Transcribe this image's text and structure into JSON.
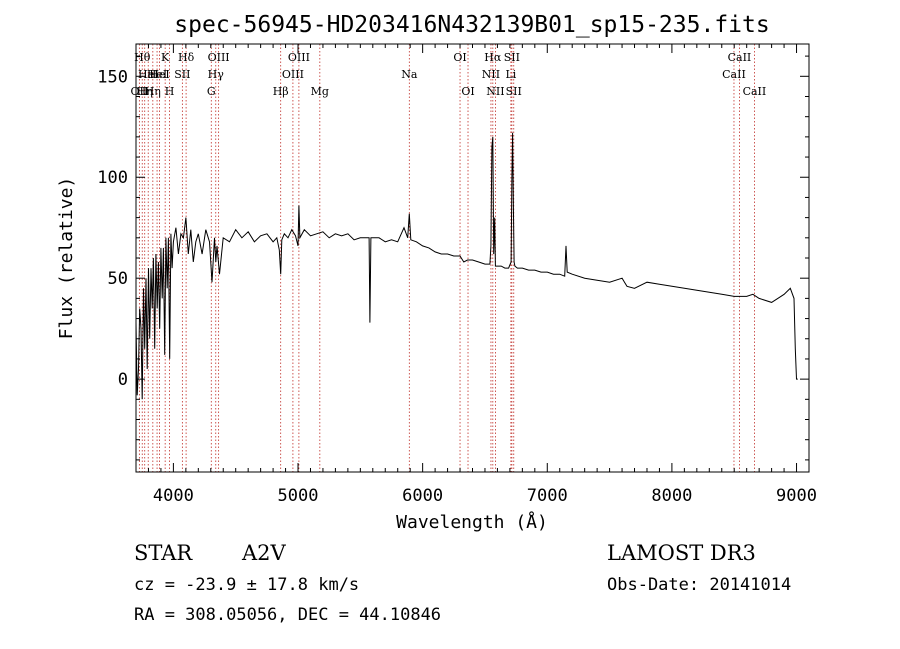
{
  "chart_data": {
    "type": "line",
    "title": "spec-56945-HD203416N432139B01_sp15-235.fits",
    "xlabel": "Wavelength (Å)",
    "ylabel": "Flux (relative)",
    "xlim": [
      3700,
      9100
    ],
    "ylim": [
      -46,
      166
    ],
    "xticks": [
      4000,
      5000,
      6000,
      7000,
      8000,
      9000
    ],
    "xtick_labels": [
      "4000",
      "5000",
      "6000",
      "7000",
      "8000",
      "9000"
    ],
    "yticks": [
      0,
      50,
      100,
      150
    ],
    "ytick_labels": [
      "0",
      "50",
      "100",
      "150"
    ],
    "grid": false,
    "series": [
      {
        "name": "spectrum",
        "x": [
          3700,
          3710,
          3720,
          3730,
          3740,
          3750,
          3760,
          3770,
          3780,
          3790,
          3800,
          3810,
          3820,
          3830,
          3840,
          3850,
          3860,
          3870,
          3880,
          3890,
          3900,
          3910,
          3920,
          3930,
          3940,
          3950,
          3960,
          3970,
          3980,
          3990,
          4000,
          4020,
          4040,
          4060,
          4080,
          4100,
          4120,
          4140,
          4160,
          4180,
          4200,
          4230,
          4260,
          4290,
          4310,
          4330,
          4340,
          4350,
          4370,
          4400,
          4450,
          4500,
          4550,
          4600,
          4650,
          4700,
          4750,
          4800,
          4830,
          4850,
          4861,
          4870,
          4890,
          4920,
          4950,
          4980,
          5000,
          5007,
          5015,
          5050,
          5100,
          5150,
          5200,
          5250,
          5300,
          5350,
          5400,
          5450,
          5500,
          5550,
          5570,
          5577,
          5585,
          5600,
          5650,
          5700,
          5750,
          5800,
          5850,
          5880,
          5893,
          5905,
          5950,
          6000,
          6050,
          6100,
          6150,
          6200,
          6250,
          6300,
          6330,
          6360,
          6400,
          6450,
          6500,
          6540,
          6548,
          6556,
          6563,
          6570,
          6578,
          6584,
          6590,
          6600,
          6630,
          6660,
          6690,
          6710,
          6716,
          6722,
          6728,
          6734,
          6740,
          6760,
          6800,
          6850,
          6900,
          6950,
          7000,
          7050,
          7100,
          7140,
          7150,
          7160,
          7200,
          7300,
          7400,
          7500,
          7600,
          7620,
          7640,
          7700,
          7800,
          7900,
          8000,
          8100,
          8200,
          8300,
          8400,
          8500,
          8600,
          8650,
          8700,
          8800,
          8850,
          8900,
          8950,
          8980,
          8990,
          9000,
          9010
        ],
        "values": [
          28,
          -8,
          5,
          35,
          25,
          -10,
          45,
          15,
          50,
          5,
          55,
          20,
          55,
          35,
          60,
          15,
          62,
          35,
          58,
          25,
          65,
          40,
          65,
          12,
          70,
          45,
          70,
          10,
          72,
          55,
          68,
          75,
          62,
          72,
          70,
          80,
          62,
          74,
          58,
          68,
          72,
          62,
          74,
          68,
          48,
          70,
          58,
          66,
          52,
          70,
          68,
          74,
          70,
          73,
          68,
          71,
          72,
          68,
          70,
          64,
          52,
          69,
          72,
          70,
          74,
          71,
          66,
          86,
          70,
          74,
          71,
          72,
          73,
          70,
          72,
          71,
          72,
          69,
          70,
          70,
          70,
          28,
          70,
          70,
          70,
          68,
          69,
          68,
          75,
          70,
          82,
          69,
          68,
          66,
          65,
          63,
          62,
          62,
          61,
          61,
          58,
          59,
          59,
          58,
          57,
          57,
          66,
          115,
          120,
          62,
          80,
          56,
          56,
          56,
          56,
          55,
          55,
          58,
          100,
          122,
          85,
          58,
          56,
          55,
          55,
          54,
          54,
          53,
          53,
          52,
          52,
          51,
          66,
          53,
          52,
          50,
          49,
          48,
          50,
          48,
          46,
          45,
          48,
          47,
          46,
          45,
          44,
          43,
          42,
          41,
          41,
          42,
          40,
          38,
          40,
          42,
          45,
          40,
          15,
          0,
          0
        ]
      }
    ],
    "line_markers": [
      {
        "wl": 3727,
        "label": "OII",
        "row": 3
      },
      {
        "wl": 3750,
        "label": "Hθ",
        "row": 1
      },
      {
        "wl": 3770,
        "label": "Hη",
        "row": 3
      },
      {
        "wl": 3798,
        "label": "HeI",
        "row": 2
      },
      {
        "wl": 3835,
        "label": "Hη",
        "row": 3
      },
      {
        "wl": 3869,
        "label": "HeI",
        "row": 2
      },
      {
        "wl": 3889,
        "label": "HeI",
        "row": 2
      },
      {
        "wl": 3934,
        "label": "K",
        "row": 1
      },
      {
        "wl": 3969,
        "label": "H",
        "row": 3
      },
      {
        "wl": 4072,
        "label": "SII",
        "row": 2
      },
      {
        "wl": 4102,
        "label": "Hδ",
        "row": 1
      },
      {
        "wl": 4304,
        "label": "G",
        "row": 3
      },
      {
        "wl": 4340,
        "label": "Hγ",
        "row": 2
      },
      {
        "wl": 4363,
        "label": "OIII",
        "row": 1
      },
      {
        "wl": 4861,
        "label": "Hβ",
        "row": 3
      },
      {
        "wl": 4959,
        "label": "OIII",
        "row": 2
      },
      {
        "wl": 5007,
        "label": "OIII",
        "row": 1
      },
      {
        "wl": 5175,
        "label": "Mg",
        "row": 3
      },
      {
        "wl": 5893,
        "label": "Na",
        "row": 2
      },
      {
        "wl": 6300,
        "label": "OI",
        "row": 1
      },
      {
        "wl": 6364,
        "label": "OI",
        "row": 3
      },
      {
        "wl": 6548,
        "label": "NII",
        "row": 2
      },
      {
        "wl": 6563,
        "label": "Hα",
        "row": 1
      },
      {
        "wl": 6584,
        "label": "NII",
        "row": 3
      },
      {
        "wl": 6708,
        "label": "Li",
        "row": 2
      },
      {
        "wl": 6716,
        "label": "SII",
        "row": 1
      },
      {
        "wl": 6731,
        "label": "SII",
        "row": 3
      },
      {
        "wl": 8498,
        "label": "CaII",
        "row": 2
      },
      {
        "wl": 8542,
        "label": "CaII",
        "row": 1
      },
      {
        "wl": 8662,
        "label": "CaII",
        "row": 3
      }
    ]
  },
  "info": {
    "object_class": "STAR",
    "subclass": "A2V",
    "survey": "LAMOST DR3",
    "redshift": "cz = -23.9 ± 17.8 km/s",
    "obs_date": "Obs-Date: 20141014",
    "coords": "RA = 308.05056, DEC =  44.10846"
  }
}
